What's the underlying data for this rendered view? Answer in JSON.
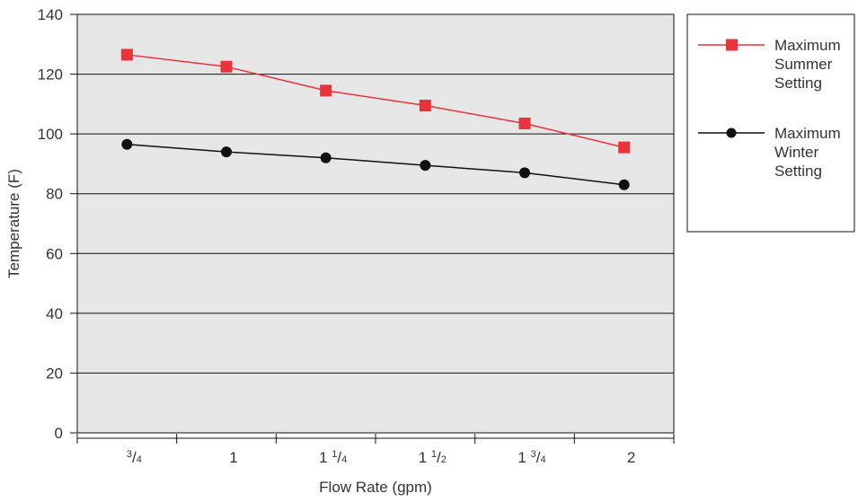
{
  "chart_data": {
    "type": "line",
    "xlabel": "Flow Rate (gpm)",
    "ylabel": "Temperature (F)",
    "ylim": [
      0,
      140
    ],
    "y_ticks": [
      "0",
      "20",
      "40",
      "60",
      "80",
      "100",
      "120",
      "140"
    ],
    "categories": [
      {
        "whole": "",
        "num": "3",
        "den": "4"
      },
      {
        "whole": "1",
        "num": "",
        "den": ""
      },
      {
        "whole": "1",
        "num": "1",
        "den": "4"
      },
      {
        "whole": "1",
        "num": "1",
        "den": "2"
      },
      {
        "whole": "1",
        "num": "3",
        "den": "4"
      },
      {
        "whole": "2",
        "num": "",
        "den": ""
      }
    ],
    "series": [
      {
        "name": [
          "Maximum",
          "Summer",
          "Setting"
        ],
        "marker": "square",
        "color": "#e8323c",
        "values": [
          126.5,
          122.5,
          114.5,
          109.5,
          103.5,
          95.5
        ]
      },
      {
        "name": [
          "Maximum",
          "Winter",
          "Setting"
        ],
        "marker": "circle",
        "color": "#111111",
        "values": [
          96.5,
          94.0,
          92.0,
          89.5,
          87.0,
          83.0
        ]
      }
    ],
    "grid": "horizontal",
    "background": "#e6e6e6",
    "legend": "right"
  }
}
